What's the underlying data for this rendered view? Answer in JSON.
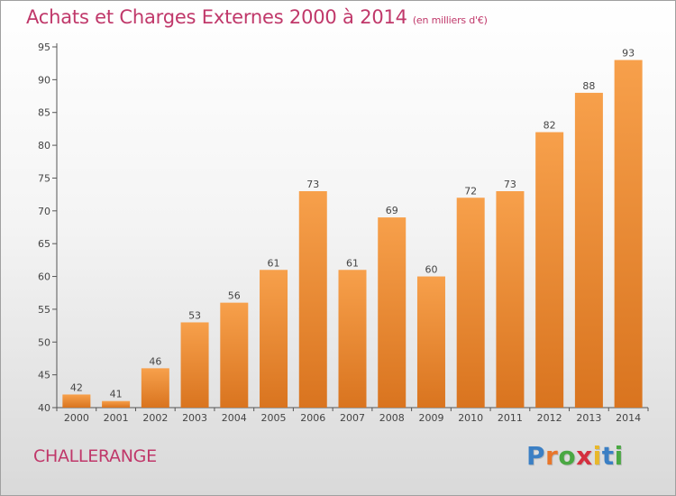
{
  "header": {
    "title": "Achats et Charges Externes 2000 à 2014",
    "subtitle": "(en milliers d'€)"
  },
  "footer": {
    "place": "CHALLERANGE",
    "logo": "Proxiti",
    "logo_colors": [
      "#3b7fc4",
      "#e8762a",
      "#4aa843",
      "#d42f3f",
      "#e8b82a",
      "#3b7fc4",
      "#4aa843"
    ]
  },
  "colors": {
    "bar_top": "#f7a04b",
    "bar_bottom": "#d9741f",
    "accent": "#c0386a"
  },
  "chart_data": {
    "type": "bar",
    "title": "Achats et Charges Externes 2000 à 2014",
    "subtitle": "(en milliers d'€)",
    "categories": [
      "2000",
      "2001",
      "2002",
      "2003",
      "2004",
      "2005",
      "2006",
      "2007",
      "2008",
      "2009",
      "2010",
      "2011",
      "2012",
      "2013",
      "2014"
    ],
    "values": [
      42,
      41,
      46,
      53,
      56,
      61,
      73,
      61,
      69,
      60,
      72,
      73,
      82,
      88,
      93
    ],
    "ylim": [
      40,
      95
    ],
    "yticks": [
      40,
      45,
      50,
      55,
      60,
      65,
      70,
      75,
      80,
      85,
      90,
      95
    ],
    "grid": false,
    "legend": "none"
  }
}
